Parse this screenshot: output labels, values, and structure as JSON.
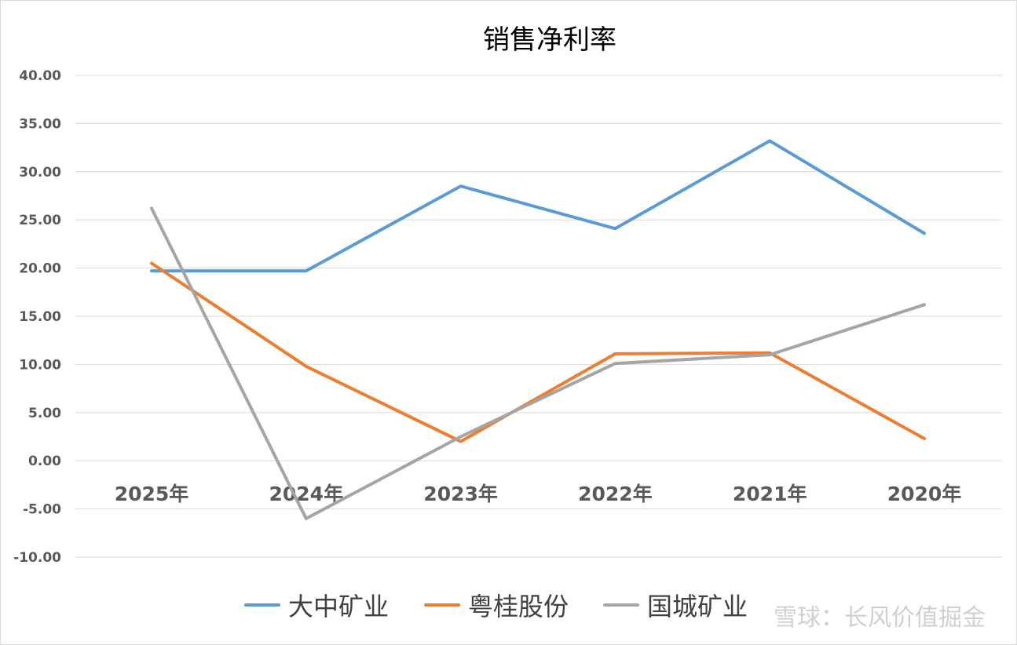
{
  "chart_data": {
    "type": "line",
    "title": "销售净利率",
    "categories": [
      "2025年",
      "2024年",
      "2023年",
      "2022年",
      "2021年",
      "2020年"
    ],
    "ylim": [
      -10,
      40
    ],
    "yticks": [
      "40.00",
      "35.00",
      "30.00",
      "25.00",
      "20.00",
      "15.00",
      "10.00",
      "5.00",
      "0.00",
      "-5.00",
      "-10.00"
    ],
    "ytick_values": [
      40,
      35,
      30,
      25,
      20,
      15,
      10,
      5,
      0,
      -5,
      -10
    ],
    "grid": true,
    "legend_position": "bottom",
    "series": [
      {
        "name": "大中矿业",
        "color": "#5b9bd5",
        "values": [
          19.7,
          19.7,
          28.5,
          24.1,
          33.2,
          23.6
        ]
      },
      {
        "name": "粤桂股份",
        "color": "#ed7d31",
        "values": [
          20.5,
          9.8,
          2.0,
          11.1,
          11.2,
          2.3
        ]
      },
      {
        "name": "国城矿业",
        "color": "#a5a5a5",
        "values": [
          26.2,
          -6.0,
          2.5,
          10.1,
          11.0,
          16.2
        ]
      }
    ]
  },
  "watermark": "雪球：长风价值掘金"
}
